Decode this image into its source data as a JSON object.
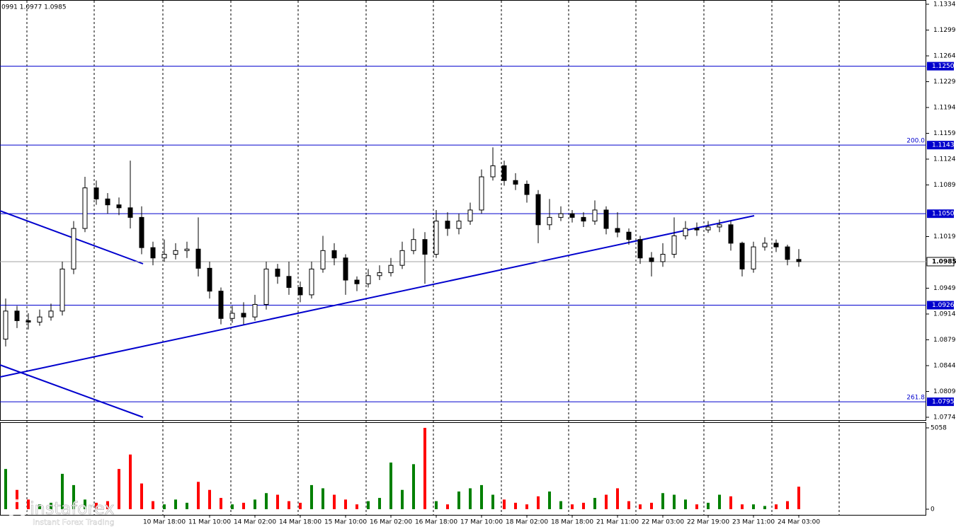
{
  "chart_data": {
    "type": "candlestick",
    "header": "0991 1.0977 1.0985",
    "categories": [
      null,
      null,
      null,
      null,
      null,
      null,
      null,
      null,
      null,
      null,
      null,
      null,
      null,
      null,
      "10 Mar 18:00",
      null,
      null,
      null,
      "11 Mar 10:00",
      null,
      null,
      null,
      "14 Mar 02:00",
      null,
      null,
      null,
      "14 Mar 18:00",
      null,
      null,
      null,
      "15 Mar 10:00",
      null,
      null,
      null,
      "16 Mar 02:00",
      null,
      null,
      null,
      "16 Mar 18:00",
      null,
      null,
      null,
      "17 Mar 10:00",
      null,
      null,
      null,
      "18 Mar 02:00",
      null,
      null,
      null,
      "18 Mar 18:00",
      null,
      null,
      null,
      "21 Mar 11:00",
      null,
      null,
      null,
      "22 Mar 03:00",
      null,
      null,
      null,
      "22 Mar 19:00",
      null,
      null,
      null,
      "23 Mar 11:00",
      null,
      null,
      null,
      "24 Mar 03:00"
    ],
    "open": [
      1.088,
      1.0918,
      1.0905,
      1.0903,
      1.091,
      1.0918,
      1.0975,
      1.103,
      1.1085,
      1.107,
      1.1062,
      1.1058,
      1.1045,
      1.1004,
      1.099,
      1.0995,
      1.1,
      1.1002,
      1.0976,
      1.0945,
      1.0908,
      1.0915,
      1.091,
      1.0927,
      1.0975,
      1.0965,
      1.095,
      1.094,
      1.0975,
      1.1,
      1.099,
      1.096,
      1.0955,
      1.0966,
      1.097,
      1.098,
      1.1,
      1.1015,
      1.0995,
      1.104,
      1.103,
      1.104,
      1.1055,
      1.11,
      1.1115,
      1.1095,
      1.109,
      1.1076,
      1.1035,
      1.1045,
      1.105,
      1.1045,
      1.104,
      1.1055,
      1.103,
      1.1025,
      1.1015,
      1.099,
      1.0985,
      1.0995,
      1.102,
      1.103,
      1.1028,
      1.1032,
      1.1035,
      1.101,
      1.0975,
      1.1005,
      1.101,
      1.1005,
      1.0988
    ],
    "high": [
      1.0935,
      1.0925,
      1.0915,
      1.092,
      1.0928,
      1.0985,
      1.104,
      1.11,
      1.1095,
      1.1078,
      1.1072,
      1.1122,
      1.106,
      1.1012,
      1.1015,
      1.101,
      1.1012,
      1.1045,
      1.0985,
      1.095,
      1.0925,
      1.093,
      1.094,
      1.0985,
      1.0982,
      1.0985,
      1.0958,
      1.0985,
      1.102,
      1.101,
      1.0995,
      1.0965,
      1.0975,
      1.098,
      1.099,
      1.1012,
      1.103,
      1.1025,
      1.1055,
      1.1052,
      1.105,
      1.1065,
      1.111,
      1.114,
      1.1122,
      1.1105,
      1.1095,
      1.1082,
      1.107,
      1.106,
      1.1055,
      1.1052,
      1.1068,
      1.106,
      1.1052,
      1.103,
      1.102,
      1.0998,
      1.101,
      1.1045,
      1.104,
      1.1038,
      1.104,
      1.1042,
      1.104,
      1.1012,
      1.1012,
      1.1018,
      1.1015,
      1.1008,
      1.1002
    ],
    "low": [
      1.087,
      1.0895,
      1.0893,
      1.0898,
      1.0905,
      1.0912,
      1.0968,
      1.1025,
      1.1062,
      1.105,
      1.1048,
      1.103,
      1.0995,
      1.098,
      1.0985,
      1.0988,
      1.099,
      1.0965,
      1.0935,
      1.09,
      1.0902,
      1.09,
      1.0905,
      1.092,
      1.0955,
      1.094,
      1.093,
      1.0935,
      1.097,
      1.098,
      1.094,
      1.0945,
      1.095,
      1.096,
      1.0965,
      1.0975,
      1.0995,
      1.0955,
      1.099,
      1.102,
      1.1022,
      1.1035,
      1.105,
      1.1095,
      1.1088,
      1.1082,
      1.1065,
      1.101,
      1.1028,
      1.104,
      1.1038,
      1.1032,
      1.1035,
      1.1022,
      1.1018,
      1.1008,
      1.0982,
      1.0965,
      1.0978,
      1.099,
      1.1015,
      1.102,
      1.1024,
      1.1025,
      1.1,
      1.0965,
      1.097,
      1.1,
      1.0998,
      1.098,
      1.0978
    ],
    "close": [
      1.0918,
      1.0905,
      1.0903,
      1.091,
      1.0918,
      1.0975,
      1.103,
      1.1085,
      1.107,
      1.1062,
      1.1058,
      1.1045,
      1.1004,
      1.099,
      1.0995,
      1.1,
      1.1002,
      1.0976,
      1.0945,
      1.0908,
      1.0915,
      1.091,
      1.0927,
      1.0975,
      1.0965,
      1.095,
      1.094,
      1.0975,
      1.1,
      1.099,
      1.096,
      1.0955,
      1.0966,
      1.097,
      1.098,
      1.1,
      1.1015,
      1.0995,
      1.104,
      1.103,
      1.104,
      1.1055,
      1.11,
      1.1115,
      1.1095,
      1.109,
      1.1076,
      1.1035,
      1.1045,
      1.105,
      1.1045,
      1.104,
      1.1055,
      1.103,
      1.1025,
      1.1015,
      1.099,
      1.0985,
      1.0995,
      1.102,
      1.103,
      1.1028,
      1.1032,
      1.1035,
      1.101,
      1.0975,
      1.1005,
      1.101,
      1.1005,
      1.0988,
      1.0985
    ],
    "up_color": "#008000",
    "down_color": "#ff0000",
    "ylim": [
      1.0774,
      1.1334
    ],
    "yticks": [
      1.1334,
      1.1299,
      1.1264,
      1.1229,
      1.1194,
      1.1159,
      1.1124,
      1.1089,
      1.1019,
      1.0949,
      1.0914,
      1.0879,
      1.0844,
      1.0809,
      1.0774
    ],
    "current_price": 1.0985,
    "level_color": "#0000cd",
    "levels": [
      {
        "price": {
          "value": 1.125,
          "label": "1.1250"
        }
      },
      {
        "price": 1.1143,
        "fib": {
          "value": 200,
          "label": "200.0"
        }
      },
      {
        "price": {
          "value": 1.105,
          "label": "1.1050"
        }
      },
      {
        "price": 1.0926
      },
      {
        "price": 1.0795,
        "fib": 261.8
      }
    ],
    "volume": {
      "values": [
        2500,
        1200,
        600,
        300,
        400,
        2200,
        1500,
        600,
        400,
        500,
        2500,
        3400,
        1600,
        500,
        300,
        600,
        400,
        1700,
        1200,
        700,
        300,
        400,
        600,
        1000,
        900,
        500,
        400,
        1500,
        1300,
        900,
        600,
        300,
        500,
        700,
        2900,
        1200,
        2800,
        5058,
        500,
        300,
        1100,
        1300,
        1500,
        900,
        600,
        400,
        300,
        800,
        1100,
        500,
        300,
        400,
        700,
        900,
        1300,
        500,
        300,
        400,
        1000,
        900,
        600,
        300,
        400,
        900,
        800,
        300,
        300,
        200,
        300,
        500,
        1400
      ],
      "ylim": [
        0,
        5058
      ],
      "yticks": [
        5058,
        0
      ]
    },
    "watermark": {
      "brand": "instaforex",
      "tagline": "Instant Forex Trading"
    }
  }
}
